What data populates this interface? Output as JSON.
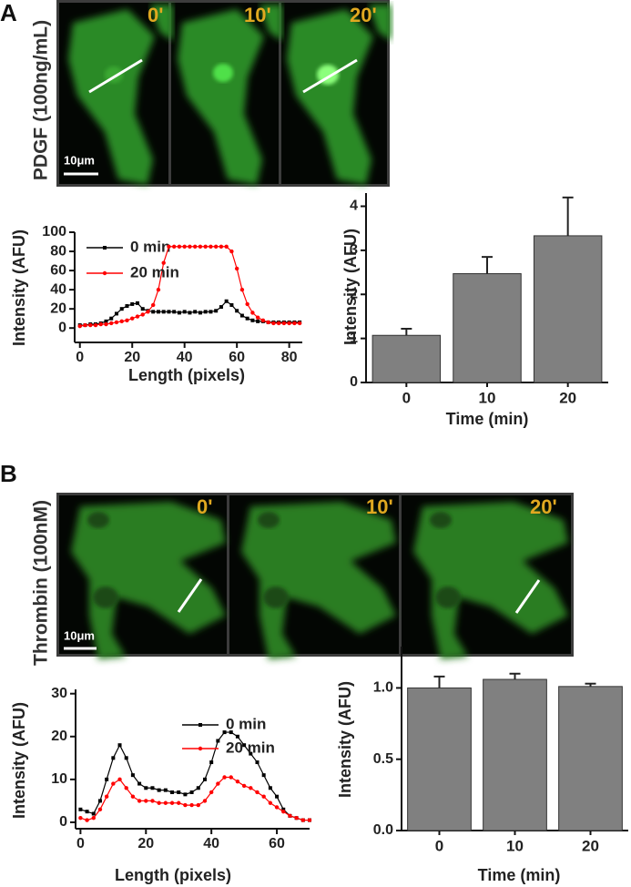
{
  "panels": [
    {
      "label": "A",
      "condition": "PDGF (100ng/mL)",
      "frames": [
        "0'",
        "10'",
        "20'"
      ],
      "scale_bar": "10μm"
    },
    {
      "label": "B",
      "condition": "Thrombin (100nM)",
      "frames": [
        "0'",
        "10'",
        "20'"
      ],
      "scale_bar": "10μm"
    }
  ],
  "chart_data": [
    {
      "type": "line",
      "x_label": "Length (pixels)",
      "y_label": "Intensity (AFU)",
      "x": [
        0,
        2,
        4,
        6,
        8,
        10,
        12,
        14,
        16,
        18,
        20,
        22,
        24,
        26,
        28,
        30,
        32,
        34,
        36,
        38,
        40,
        42,
        44,
        46,
        48,
        50,
        52,
        54,
        56,
        58,
        60,
        62,
        64,
        66,
        68,
        70,
        72,
        74,
        76,
        78,
        80,
        82,
        84
      ],
      "series": [
        {
          "name": "0 min",
          "color": "#000000",
          "marker": "square",
          "values": [
            3,
            3,
            4,
            4,
            5,
            7,
            10,
            15,
            20,
            23,
            25,
            26,
            20,
            18,
            17,
            17,
            17,
            17,
            17,
            16,
            17,
            16,
            17,
            16,
            17,
            17,
            18,
            22,
            28,
            24,
            18,
            13,
            10,
            8,
            7,
            7,
            6,
            6,
            6,
            6,
            6,
            6,
            6
          ]
        },
        {
          "name": "20 min",
          "color": "#ff0000",
          "marker": "circle",
          "values": [
            2,
            3,
            3,
            3,
            4,
            4,
            5,
            6,
            7,
            8,
            10,
            12,
            14,
            17,
            24,
            40,
            68,
            85,
            85,
            85,
            85,
            85,
            85,
            85,
            85,
            85,
            85,
            85,
            85,
            80,
            62,
            40,
            25,
            16,
            11,
            8,
            6,
            5,
            5,
            5,
            5,
            5,
            5
          ]
        }
      ],
      "xlim": [
        -2,
        85
      ],
      "ylim": [
        -15,
        100
      ],
      "xticks": [
        0,
        20,
        40,
        60,
        80
      ],
      "yticks": [
        0,
        20,
        40,
        60,
        80,
        100
      ]
    },
    {
      "type": "bar",
      "x_label": "Time (min)",
      "y_label": "Intensity (AFU)",
      "categories": [
        "0",
        "10",
        "20"
      ],
      "values": [
        1.07,
        2.47,
        3.33
      ],
      "errors": [
        0.15,
        0.38,
        0.87
      ],
      "color": "#808080",
      "ylim": [
        0,
        4.3
      ],
      "yticks": [
        0,
        1,
        2,
        3,
        4
      ]
    },
    {
      "type": "line",
      "x_label": "Length (pixels)",
      "y_label": "Intensity (AFU)",
      "x": [
        0,
        2,
        4,
        6,
        8,
        10,
        12,
        14,
        16,
        18,
        20,
        22,
        24,
        26,
        28,
        30,
        32,
        34,
        36,
        38,
        40,
        42,
        44,
        46,
        48,
        50,
        52,
        54,
        56,
        58,
        60,
        62,
        64,
        66,
        68,
        70
      ],
      "series": [
        {
          "name": "0 min",
          "color": "#000000",
          "marker": "square",
          "values": [
            3,
            2.5,
            2,
            5,
            10,
            15,
            18,
            15,
            11,
            9,
            8,
            8,
            7.5,
            7.5,
            7,
            7,
            6.5,
            7,
            8,
            10,
            14,
            19,
            21,
            21,
            20,
            18,
            16,
            14,
            11,
            8,
            6,
            3,
            1.5,
            1,
            0.5,
            0.5
          ]
        },
        {
          "name": "20 min",
          "color": "#ff0000",
          "marker": "circle",
          "values": [
            1,
            0.5,
            1,
            3,
            6,
            9,
            10,
            8,
            6,
            5,
            5,
            5,
            4.5,
            4.5,
            4.5,
            4.5,
            4,
            4,
            4,
            5,
            7,
            9,
            10.5,
            10.5,
            9.5,
            8.5,
            8,
            7,
            6,
            4.5,
            3.5,
            2.5,
            1.5,
            1,
            0.5,
            0.5
          ]
        }
      ],
      "xlim": [
        -1.5,
        70
      ],
      "ylim": [
        -1.5,
        31
      ],
      "xticks": [
        0,
        20,
        40,
        60
      ],
      "yticks": [
        0,
        10,
        20,
        30
      ]
    },
    {
      "type": "bar",
      "x_label": "Time (min)",
      "y_label": "Intensity (AFU)",
      "categories": [
        "0",
        "10",
        "20"
      ],
      "values": [
        1.0,
        1.06,
        1.01
      ],
      "errors": [
        0.08,
        0.04,
        0.02
      ],
      "color": "#808080",
      "ylim": [
        0,
        1.29
      ],
      "yticks": [
        {
          "value": 0,
          "label": "0.0"
        },
        {
          "value": 0.5,
          "label": "0.5"
        },
        {
          "value": 1,
          "label": "1.0"
        }
      ]
    }
  ]
}
